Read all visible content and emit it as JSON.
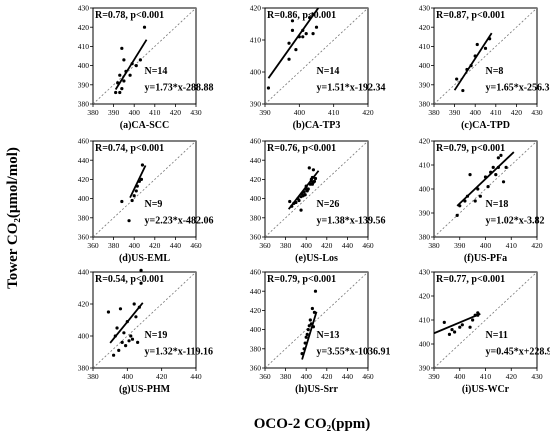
{
  "ylabel": "Tower CO₂(μmol/mol)",
  "xlabel": "OCO-2 CO₂(ppm)",
  "chart_data": [
    {
      "type": "scatter",
      "caption": "(a)CA-SCC",
      "stat": "R=0.78, p<0.001",
      "n": "N=14",
      "equation": "y=1.73*x-288.88",
      "xlim": [
        380,
        430
      ],
      "ylim": [
        380,
        430
      ],
      "xticks": [
        380,
        390,
        400,
        410,
        420,
        430
      ],
      "yticks": [
        380,
        390,
        400,
        410,
        420,
        430
      ],
      "fit": {
        "slope": 1.73,
        "intercept": -288.88,
        "x_range": [
          391,
          406
        ]
      },
      "one_to_one": true,
      "points": [
        [
          391,
          386
        ],
        [
          392,
          391
        ],
        [
          393,
          386
        ],
        [
          393,
          395
        ],
        [
          394,
          388
        ],
        [
          395,
          392
        ],
        [
          395,
          403
        ],
        [
          394,
          409
        ],
        [
          396,
          397
        ],
        [
          398,
          395
        ],
        [
          399,
          401
        ],
        [
          401,
          400
        ],
        [
          403,
          403
        ],
        [
          405,
          420
        ]
      ]
    },
    {
      "type": "scatter",
      "caption": "(b)CA-TP3",
      "stat": "R=0.86, p<0.001",
      "n": "N=14",
      "equation": "y=1.51*x-192.34",
      "xlim": [
        390,
        420
      ],
      "ylim": [
        390,
        420
      ],
      "xticks": [
        390,
        400,
        410,
        420
      ],
      "yticks": [
        390,
        400,
        410,
        420
      ],
      "fit": {
        "slope": 1.51,
        "intercept": -192.34,
        "x_range": [
          391,
          407
        ]
      },
      "one_to_one": true,
      "points": [
        [
          391,
          395
        ],
        [
          397,
          404
        ],
        [
          397,
          409
        ],
        [
          398,
          413
        ],
        [
          398,
          416
        ],
        [
          399,
          407
        ],
        [
          400,
          411
        ],
        [
          401,
          411
        ],
        [
          401,
          413
        ],
        [
          402,
          412
        ],
        [
          403,
          417
        ],
        [
          404,
          418
        ],
        [
          404,
          412
        ],
        [
          405,
          414
        ]
      ]
    },
    {
      "type": "scatter",
      "caption": "(c)CA-TPD",
      "stat": "R=0.87, p<0.001",
      "n": "N=8",
      "equation": "y=1.65*x-256.31",
      "xlim": [
        380,
        430
      ],
      "ylim": [
        380,
        430
      ],
      "xticks": [
        380,
        390,
        400,
        410,
        420,
        430
      ],
      "yticks": [
        380,
        390,
        400,
        410,
        420,
        430
      ],
      "fit": {
        "slope": 1.65,
        "intercept": -256.31,
        "x_range": [
          390,
          408
        ]
      },
      "one_to_one": true,
      "points": [
        [
          391,
          393
        ],
        [
          394,
          387
        ],
        [
          396,
          398
        ],
        [
          398,
          400
        ],
        [
          400,
          405
        ],
        [
          401,
          411
        ],
        [
          405,
          409
        ],
        [
          407,
          414
        ]
      ]
    },
    {
      "type": "scatter",
      "caption": "(d)US-EML",
      "stat": "R=0.74, p<0.001",
      "n": "N=9",
      "equation": "y=2.23*x-482.06",
      "xlim": [
        360,
        460
      ],
      "ylim": [
        360,
        460
      ],
      "xticks": [
        360,
        380,
        400,
        420,
        440,
        460
      ],
      "yticks": [
        360,
        380,
        400,
        420,
        440,
        460
      ],
      "fit": {
        "slope": 2.23,
        "intercept": -482.06,
        "x_range": [
          396,
          411
        ]
      },
      "one_to_one": true,
      "points": [
        [
          388,
          397
        ],
        [
          395,
          377
        ],
        [
          398,
          398
        ],
        [
          400,
          403
        ],
        [
          402,
          408
        ],
        [
          403,
          413
        ],
        [
          405,
          418
        ],
        [
          407,
          420
        ],
        [
          408,
          435
        ]
      ]
    },
    {
      "type": "scatter",
      "caption": "(e)US-Los",
      "stat": "R=0.76, p<0.001",
      "n": "N=26",
      "equation": "y=1.38*x-139.56",
      "xlim": [
        360,
        460
      ],
      "ylim": [
        360,
        460
      ],
      "xticks": [
        360,
        380,
        400,
        420,
        440,
        460
      ],
      "yticks": [
        360,
        380,
        400,
        420,
        440,
        460
      ],
      "fit": {
        "slope": 1.38,
        "intercept": -139.56,
        "x_range": [
          383,
          412
        ]
      },
      "one_to_one": true,
      "points": [
        [
          384,
          397
        ],
        [
          386,
          392
        ],
        [
          388,
          395
        ],
        [
          390,
          396
        ],
        [
          392,
          400
        ],
        [
          393,
          398
        ],
        [
          395,
          402
        ],
        [
          395,
          388
        ],
        [
          396,
          405
        ],
        [
          397,
          403
        ],
        [
          398,
          407
        ],
        [
          399,
          404
        ],
        [
          400,
          410
        ],
        [
          400,
          413
        ],
        [
          401,
          408
        ],
        [
          402,
          410
        ],
        [
          403,
          432
        ],
        [
          404,
          415
        ],
        [
          405,
          418
        ],
        [
          405,
          420
        ],
        [
          406,
          415
        ],
        [
          406,
          422
        ],
        [
          407,
          417
        ],
        [
          407,
          430
        ],
        [
          408,
          418
        ],
        [
          409,
          421
        ]
      ]
    },
    {
      "type": "scatter",
      "caption": "(f)US-PFa",
      "stat": "R=0.79, p<0.001",
      "n": "N=18",
      "equation": "y=1.02*x-3.82",
      "xlim": [
        380,
        420
      ],
      "ylim": [
        380,
        420
      ],
      "xticks": [
        380,
        390,
        400,
        410,
        420
      ],
      "yticks": [
        380,
        390,
        400,
        410,
        420
      ],
      "fit": {
        "slope": 1.02,
        "intercept": -3.82,
        "x_range": [
          389,
          411
        ]
      },
      "one_to_one": true,
      "points": [
        [
          389,
          389
        ],
        [
          390,
          393
        ],
        [
          392,
          395
        ],
        [
          393,
          397
        ],
        [
          394,
          406
        ],
        [
          396,
          395
        ],
        [
          397,
          400
        ],
        [
          398,
          397
        ],
        [
          400,
          405
        ],
        [
          401,
          401
        ],
        [
          402,
          407
        ],
        [
          403,
          409
        ],
        [
          404,
          406
        ],
        [
          405,
          409
        ],
        [
          405,
          413
        ],
        [
          406,
          414
        ],
        [
          407,
          403
        ],
        [
          408,
          409
        ]
      ]
    },
    {
      "type": "scatter",
      "caption": "(g)US-PHM",
      "stat": "R=0.54, p<0.001",
      "n": "N=19",
      "equation": "y=1.32*x-119.16",
      "xlim": [
        380,
        440
      ],
      "ylim": [
        380,
        440
      ],
      "xticks": [
        380,
        400,
        420,
        440
      ],
      "yticks": [
        380,
        400,
        420,
        440
      ],
      "fit": {
        "slope": 1.32,
        "intercept": -119.16,
        "x_range": [
          390,
          409
        ]
      },
      "one_to_one": true,
      "points": [
        [
          389,
          415
        ],
        [
          392,
          388
        ],
        [
          393,
          400
        ],
        [
          394,
          405
        ],
        [
          395,
          391
        ],
        [
          396,
          417
        ],
        [
          397,
          396
        ],
        [
          398,
          402
        ],
        [
          399,
          394
        ],
        [
          400,
          409
        ],
        [
          401,
          397
        ],
        [
          402,
          400
        ],
        [
          403,
          398
        ],
        [
          404,
          420
        ],
        [
          405,
          412
        ],
        [
          406,
          396
        ],
        [
          407,
          418
        ],
        [
          408,
          433
        ],
        [
          408,
          441
        ]
      ]
    },
    {
      "type": "scatter",
      "caption": "(h)US-Srr",
      "stat": "R=0.79, p<0.001",
      "n": "N=13",
      "equation": "y=3.55*x-1036.91",
      "xlim": [
        360,
        460
      ],
      "ylim": [
        360,
        460
      ],
      "xticks": [
        360,
        380,
        400,
        420,
        440,
        460
      ],
      "yticks": [
        360,
        380,
        400,
        420,
        440,
        460
      ],
      "fit": {
        "slope": 3.55,
        "intercept": -1036.91,
        "x_range": [
          396,
          410
        ]
      },
      "one_to_one": true,
      "points": [
        [
          396,
          375
        ],
        [
          398,
          380
        ],
        [
          399,
          386
        ],
        [
          400,
          392
        ],
        [
          401,
          395
        ],
        [
          402,
          400
        ],
        [
          403,
          404
        ],
        [
          404,
          410
        ],
        [
          405,
          406
        ],
        [
          406,
          422
        ],
        [
          407,
          403
        ],
        [
          408,
          418
        ],
        [
          409,
          440
        ]
      ]
    },
    {
      "type": "scatter",
      "caption": "(i)US-WCr",
      "stat": "R=0.77, p<0.001",
      "n": "N=11",
      "equation": "y=0.45*x+228.97",
      "xlim": [
        390,
        430
      ],
      "ylim": [
        390,
        430
      ],
      "xticks": [
        390,
        400,
        410,
        420,
        430
      ],
      "yticks": [
        390,
        400,
        410,
        420,
        430
      ],
      "fit": {
        "slope": 0.45,
        "intercept": 228.97,
        "x_range": [
          390,
          408
        ]
      },
      "one_to_one": true,
      "points": [
        [
          394,
          409
        ],
        [
          396,
          404
        ],
        [
          397,
          406
        ],
        [
          398,
          405
        ],
        [
          400,
          407
        ],
        [
          401,
          408
        ],
        [
          404,
          407
        ],
        [
          405,
          410
        ],
        [
          406,
          412
        ],
        [
          407,
          412
        ],
        [
          407,
          413
        ]
      ]
    }
  ]
}
